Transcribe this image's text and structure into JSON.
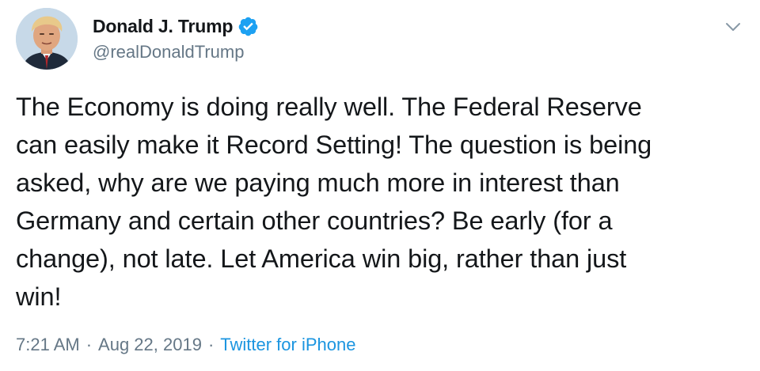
{
  "author": {
    "display_name": "Donald J. Trump",
    "handle": "@realDonaldTrump",
    "verified": true,
    "verified_color": "#1da1f2"
  },
  "tweet": {
    "text": "The Economy is doing really well. The Federal Reserve\ncan easily make it Record Setting! The question is being\nasked, why are we paying much more in interest than\nGermany and certain other countries? Be early (for a\nchange), not late. Let America win big, rather than just\nwin!",
    "time": "7:21 AM",
    "separator": "·",
    "date": "Aug 22, 2019",
    "source": "Twitter for iPhone"
  },
  "icons": {
    "menu": "chevron-down-icon",
    "verified": "verified-badge-icon"
  },
  "colors": {
    "text_primary": "#14171a",
    "text_secondary": "#657786",
    "link": "#1b95e0"
  }
}
